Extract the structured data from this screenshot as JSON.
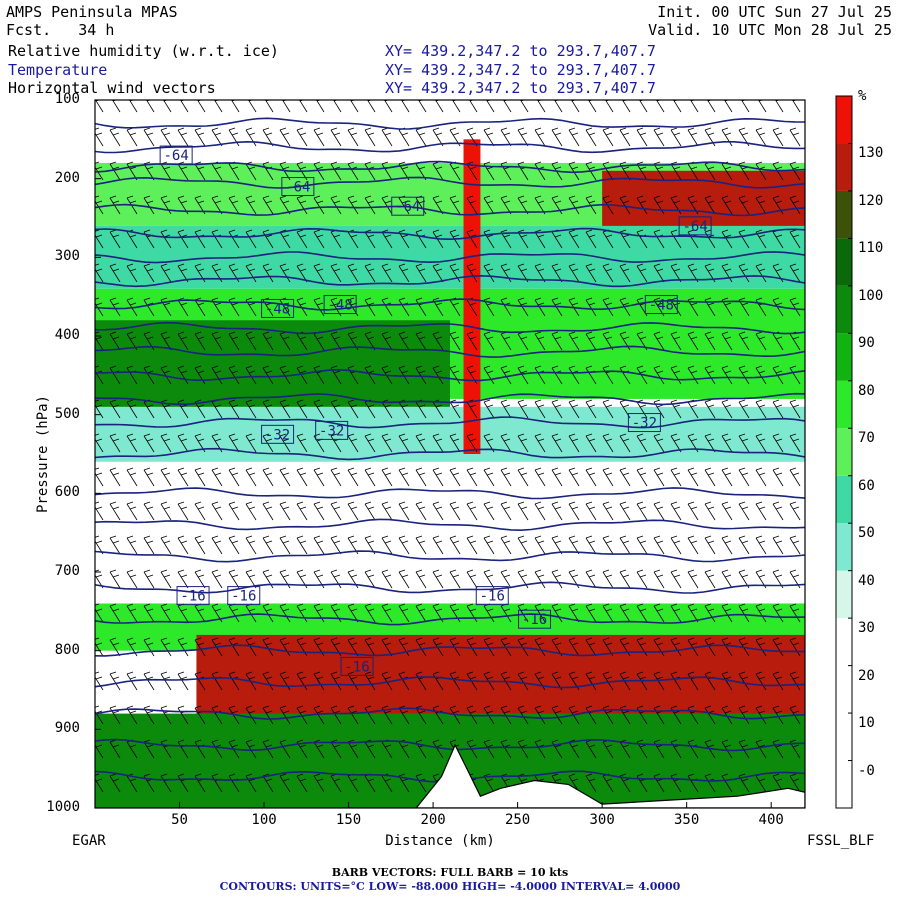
{
  "header": {
    "model": "AMPS Peninsula MPAS",
    "forecast": "Fcst.   34 h",
    "init": "Init. 00 UTC Sun 27 Jul 25",
    "valid": "Valid. 10 UTC Mon 28 Jul 25",
    "fields": [
      {
        "name": "Relative humidity (w.r.t. ice)",
        "xy": "XY= 439.2,347.2 to 293.7,407.7"
      },
      {
        "name": "Temperature",
        "xy": "XY= 439.2,347.2 to 293.7,407.7"
      },
      {
        "name": "Horizontal wind vectors",
        "xy": "XY= 439.2,347.2 to 293.7,407.7"
      }
    ]
  },
  "axes": {
    "ylabel": "Pressure (hPa)",
    "xlabel": "Distance (km)",
    "left_station": "EGAR",
    "right_station": "FSSL_BLF"
  },
  "footer": {
    "barb": "BARB VECTORS:  FULL BARB = 10 kts",
    "contours": "CONTOURS:  UNITS=°C  LOW= -88.000     HIGH= -4.0000     INTERVAL=   4.0000"
  },
  "colors": {
    "contour": "#1a237e",
    "barb": "#000000",
    "terrain": "#ffffff"
  },
  "chart_data": {
    "type": "heatmap",
    "x": {
      "label": "Distance (km)",
      "range": [
        0,
        420
      ],
      "ticks": [
        50,
        100,
        150,
        200,
        250,
        300,
        350,
        400
      ]
    },
    "y": {
      "label": "Pressure (hPa)",
      "range": [
        1000,
        100
      ],
      "ticks": [
        100,
        200,
        300,
        400,
        500,
        600,
        700,
        800,
        900,
        1000
      ],
      "inverted": true
    },
    "colorbar": {
      "unit": "%",
      "ticks": [
        0,
        10,
        20,
        30,
        40,
        50,
        60,
        70,
        80,
        90,
        100,
        110,
        120,
        130
      ],
      "tick_labels": [
        "-0",
        "10",
        "20",
        "30",
        "40",
        "50",
        "60",
        "70",
        "80",
        "90",
        "100",
        "110",
        "120",
        "130"
      ],
      "bins": [
        {
          "from": -10,
          "to": 10,
          "color": "#ffffff"
        },
        {
          "from": 10,
          "to": 30,
          "color": "#ffffff"
        },
        {
          "from": 30,
          "to": 40,
          "color": "#d5f7ea"
        },
        {
          "from": 40,
          "to": 50,
          "color": "#7fe8d0"
        },
        {
          "from": 50,
          "to": 60,
          "color": "#3ed9a4"
        },
        {
          "from": 60,
          "to": 70,
          "color": "#5ef05a"
        },
        {
          "from": 70,
          "to": 80,
          "color": "#2ee82a"
        },
        {
          "from": 80,
          "to": 90,
          "color": "#11b311"
        },
        {
          "from": 90,
          "to": 100,
          "color": "#0b8a0b"
        },
        {
          "from": 100,
          "to": 110,
          "color": "#0a6a0a"
        },
        {
          "from": 110,
          "to": 120,
          "color": "#3c5208"
        },
        {
          "from": 120,
          "to": 130,
          "color": "#b71c0c"
        },
        {
          "from": 130,
          "to": 140,
          "color": "#ee1106"
        }
      ]
    },
    "rh_bands": [
      {
        "p_top": 100,
        "p_bot": 180,
        "x_from": 0,
        "x_to": 420,
        "rh": 20
      },
      {
        "p_top": 180,
        "p_bot": 260,
        "x_from": 0,
        "x_to": 420,
        "rh": 65
      },
      {
        "p_top": 190,
        "p_bot": 290,
        "x_from": 300,
        "x_to": 420,
        "rh": 125
      },
      {
        "p_top": 260,
        "p_bot": 340,
        "x_from": 0,
        "x_to": 420,
        "rh": 55
      },
      {
        "p_top": 340,
        "p_bot": 400,
        "x_from": 0,
        "x_to": 420,
        "rh": 75
      },
      {
        "p_top": 380,
        "p_bot": 500,
        "x_from": 0,
        "x_to": 210,
        "rh": 95
      },
      {
        "p_top": 380,
        "p_bot": 480,
        "x_from": 210,
        "x_to": 420,
        "rh": 75
      },
      {
        "p_top": 490,
        "p_bot": 560,
        "x_from": 0,
        "x_to": 420,
        "rh": 45
      },
      {
        "p_top": 560,
        "p_bot": 740,
        "x_from": 0,
        "x_to": 420,
        "rh": 15
      },
      {
        "p_top": 740,
        "p_bot": 800,
        "x_from": 0,
        "x_to": 420,
        "rh": 75
      },
      {
        "p_top": 780,
        "p_bot": 900,
        "x_from": 60,
        "x_to": 420,
        "rh": 125
      },
      {
        "p_top": 880,
        "p_bot": 1000,
        "x_from": 0,
        "x_to": 420,
        "rh": 95
      },
      {
        "p_top": 150,
        "p_bot": 550,
        "x_from": 218,
        "x_to": 228,
        "rh": 135
      }
    ],
    "terrain": [
      {
        "x": 0,
        "p": 1000
      },
      {
        "x": 190,
        "p": 1000
      },
      {
        "x": 205,
        "p": 960
      },
      {
        "x": 213,
        "p": 920
      },
      {
        "x": 220,
        "p": 950
      },
      {
        "x": 228,
        "p": 985
      },
      {
        "x": 240,
        "p": 975
      },
      {
        "x": 260,
        "p": 965
      },
      {
        "x": 280,
        "p": 970
      },
      {
        "x": 300,
        "p": 995
      },
      {
        "x": 340,
        "p": 990
      },
      {
        "x": 380,
        "p": 985
      },
      {
        "x": 410,
        "p": 975
      },
      {
        "x": 420,
        "p": 980
      },
      {
        "x": 420,
        "p": 1000
      }
    ],
    "contour_levels": [
      -64,
      -48,
      -32,
      -16
    ],
    "contour_labels": [
      {
        "value": "-64",
        "x": 48,
        "p": 170
      },
      {
        "value": "-64",
        "x": 120,
        "p": 210
      },
      {
        "value": "-64",
        "x": 185,
        "p": 235
      },
      {
        "value": "-64",
        "x": 355,
        "p": 260
      },
      {
        "value": "-48",
        "x": 108,
        "p": 365
      },
      {
        "value": "-48",
        "x": 145,
        "p": 360
      },
      {
        "value": "-48",
        "x": 335,
        "p": 360
      },
      {
        "value": "-32",
        "x": 108,
        "p": 525
      },
      {
        "value": "-32",
        "x": 140,
        "p": 520
      },
      {
        "value": "-32",
        "x": 325,
        "p": 510
      },
      {
        "value": "-16",
        "x": 58,
        "p": 730
      },
      {
        "value": "-16",
        "x": 88,
        "p": 730
      },
      {
        "value": "-16",
        "x": 235,
        "p": 730
      },
      {
        "value": "-16",
        "x": 260,
        "p": 760
      },
      {
        "value": "-16",
        "x": 155,
        "p": 820
      }
    ],
    "isotherm_pressures": [
      130,
      160,
      185,
      205,
      240,
      270,
      300,
      330,
      360,
      390,
      420,
      450,
      480,
      510,
      550,
      600,
      640,
      680,
      720,
      760,
      800,
      840,
      880,
      920,
      960
    ]
  }
}
